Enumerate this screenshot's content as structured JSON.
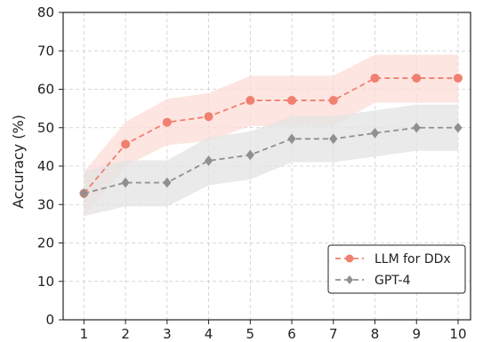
{
  "chart_data": {
    "type": "line",
    "title": "",
    "xlabel": "",
    "ylabel": "Accuracy (%)",
    "x": [
      1,
      2,
      3,
      4,
      5,
      6,
      7,
      8,
      9,
      10
    ],
    "xlim": [
      0.5,
      10.3
    ],
    "ylim": [
      0,
      80
    ],
    "yticks": [
      0,
      10,
      20,
      30,
      40,
      50,
      60,
      70,
      80
    ],
    "grid": true,
    "legend": "bottom-right",
    "series": [
      {
        "name": "LLM for DDx",
        "values": [
          32.9,
          45.7,
          51.4,
          52.9,
          57.1,
          57.1,
          57.1,
          62.9,
          62.9,
          62.9
        ],
        "lower": [
          27,
          40,
          45.5,
          46.5,
          50.5,
          50.5,
          50.5,
          56.5,
          56.5,
          56.5
        ],
        "upper": [
          38.5,
          51.5,
          57.5,
          59,
          63.5,
          63.5,
          63.5,
          69,
          69,
          69
        ],
        "color": "#f08070",
        "band_color": "#fcdcd7",
        "marker": "circle",
        "linestyle": "dashed"
      },
      {
        "name": "GPT-4",
        "values": [
          32.9,
          35.7,
          35.7,
          41.4,
          42.9,
          47.1,
          47.1,
          48.6,
          50.0,
          50.0
        ],
        "lower": [
          27,
          29.5,
          29.5,
          35,
          36.5,
          41,
          41,
          42.5,
          44,
          44
        ],
        "upper": [
          38.5,
          41.5,
          41.5,
          47.5,
          49,
          53,
          53,
          54.5,
          56,
          56
        ],
        "color": "#909090",
        "band_color": "#e3e3e3",
        "marker": "diamond",
        "linestyle": "dashed"
      }
    ]
  }
}
